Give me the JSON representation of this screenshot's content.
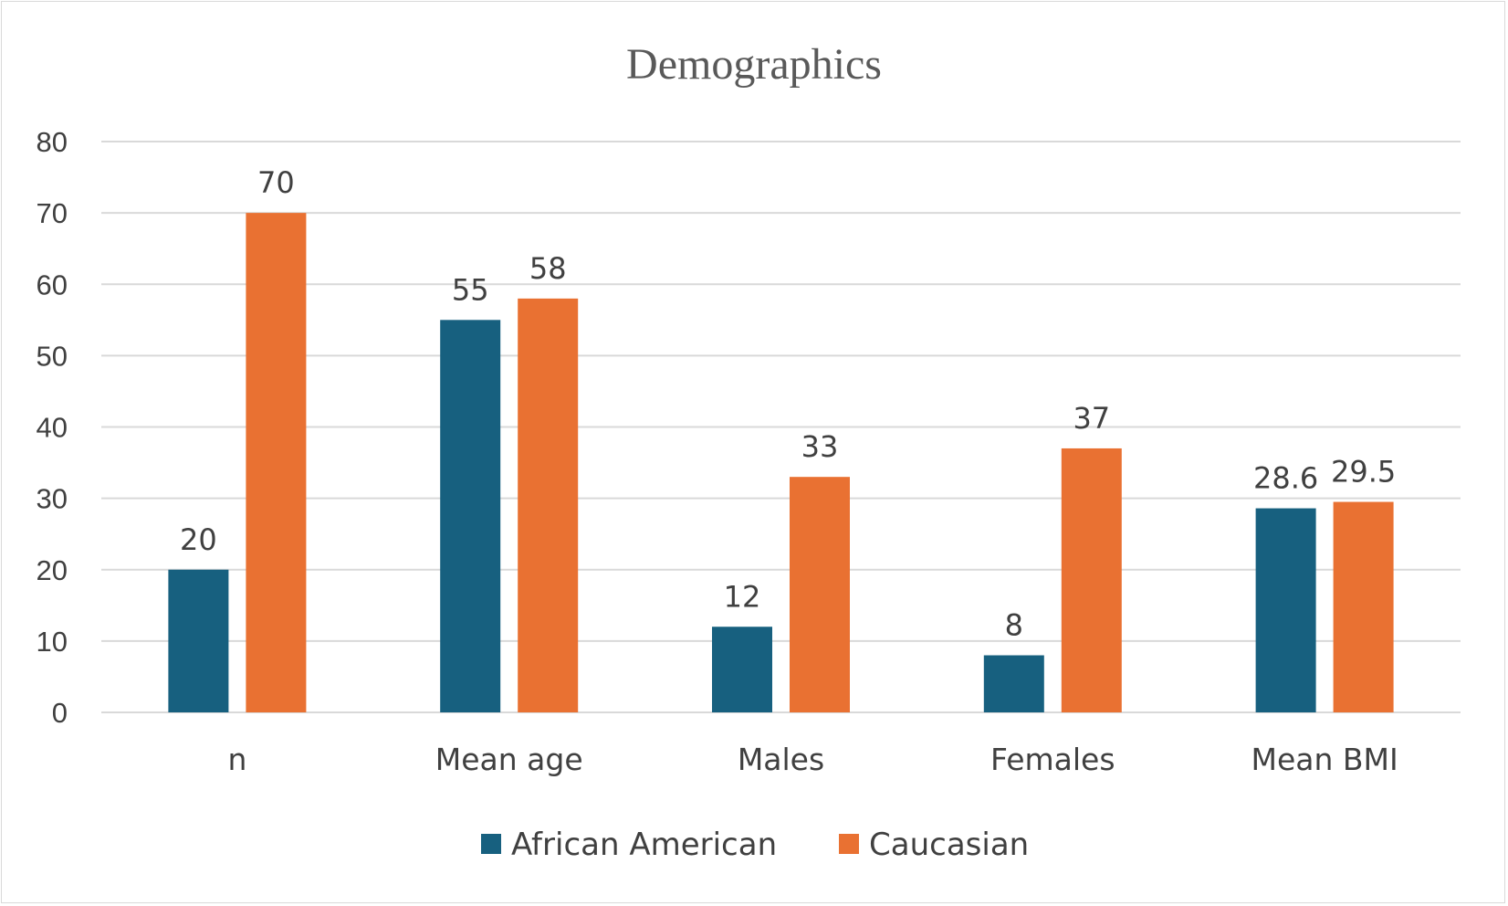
{
  "chart_data": {
    "type": "bar",
    "title": "Demographics",
    "categories": [
      "n",
      "Mean age",
      "Males",
      "Females",
      "Mean BMI"
    ],
    "series": [
      {
        "name": "African American",
        "color": "#17607f",
        "values": [
          20,
          55,
          12,
          8,
          28.6
        ],
        "labels": [
          "20",
          "55",
          "12",
          "8",
          "28.6"
        ]
      },
      {
        "name": "Caucasian",
        "color": "#e97132",
        "values": [
          70,
          58,
          33,
          37,
          29.5
        ],
        "labels": [
          "70",
          "58",
          "33",
          "37",
          "29.5"
        ]
      }
    ],
    "ylim": [
      0,
      80
    ],
    "yticks": [
      "0",
      "10",
      "20",
      "30",
      "40",
      "50",
      "60",
      "70",
      "80"
    ],
    "grid": true,
    "gridline_color": "#d9d9d9",
    "legend_position": "bottom",
    "data_labels": true,
    "xlabel": "",
    "ylabel": ""
  }
}
